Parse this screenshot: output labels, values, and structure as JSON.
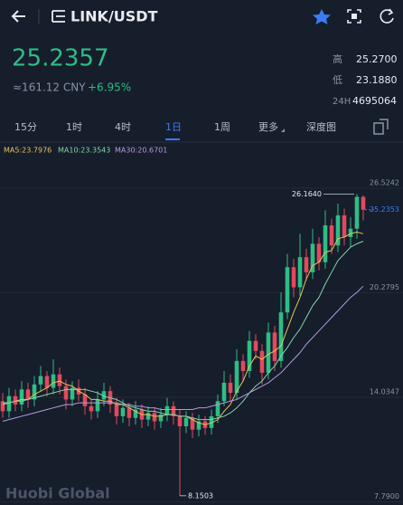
{
  "header": {
    "pair": "LINK/USDT"
  },
  "price": {
    "last": "25.2357",
    "cny": "≈161.12 CNY",
    "change": "+6.95%",
    "high_label": "高",
    "high": "25.2700",
    "low_label": "低",
    "low": "23.1880",
    "vol_label": "24H",
    "vol": "4695064"
  },
  "tabs": [
    "15分",
    "1时",
    "4时",
    "1日",
    "1周",
    "更多",
    "深度图"
  ],
  "watermark": "Huobi Global",
  "chart_data": {
    "type": "candlestick",
    "legend": [
      "MA5:23.7976",
      "MA10:23.3543",
      "MA30:20.6701"
    ],
    "up_color": "#2ebd85",
    "down_color": "#e04a5f",
    "open": [
      13.8,
      13.2,
      14.1,
      13.6,
      14.5,
      13.9,
      14.8,
      15.3,
      14.6,
      15.4,
      14.7,
      13.9,
      14.6,
      14.2,
      13.5,
      13.2,
      13.9,
      14.4,
      13.6,
      12.9,
      13.4,
      12.8,
      13.3,
      12.7,
      13.1,
      12.6,
      13.0,
      13.5,
      12.9,
      12.3,
      12.8,
      12.1,
      12.6,
      12.2,
      12.9,
      13.8,
      14.9,
      14.3,
      16.2,
      15.6,
      17.4,
      16.8,
      15.5,
      17.9,
      16.2,
      19.1,
      21.8,
      20.6,
      22.4,
      21.5,
      23.2,
      22.1,
      24.3,
      23.1,
      24.9,
      23.6,
      24.1,
      26.0
    ],
    "high": [
      14.3,
      14.6,
      14.5,
      15.0,
      14.9,
      15.3,
      15.9,
      15.6,
      16.3,
      15.8,
      15.1,
      15.0,
      15.1,
      14.6,
      13.9,
      14.4,
      14.9,
      14.7,
      14.0,
      13.9,
      13.7,
      13.8,
      13.6,
      13.5,
      13.4,
      13.4,
      14.0,
      13.8,
      13.3,
      13.2,
      13.1,
      13.0,
      12.9,
      13.3,
      14.2,
      15.6,
      15.4,
      16.9,
      16.6,
      18.0,
      17.8,
      17.2,
      18.5,
      18.3,
      20.3,
      22.6,
      22.3,
      23.8,
      22.9,
      24.1,
      23.6,
      25.2,
      24.7,
      25.6,
      25.3,
      24.8,
      26.164,
      26.1
    ],
    "low": [
      12.8,
      12.8,
      13.2,
      13.2,
      13.4,
      13.5,
      14.4,
      14.1,
      14.2,
      14.2,
      13.3,
      13.5,
      13.8,
      13.0,
      12.7,
      12.8,
      13.5,
      13.1,
      12.4,
      12.5,
      12.3,
      12.4,
      12.2,
      12.3,
      12.1,
      12.2,
      12.6,
      12.4,
      8.1503,
      11.9,
      11.6,
      11.7,
      11.8,
      11.8,
      12.5,
      13.5,
      13.8,
      13.9,
      15.0,
      15.2,
      16.3,
      14.8,
      15.1,
      15.6,
      15.8,
      18.7,
      20.0,
      20.1,
      21.0,
      21.1,
      21.6,
      21.7,
      22.6,
      22.7,
      23.1,
      23.0,
      23.5,
      24.6
    ],
    "close": [
      13.2,
      14.1,
      13.6,
      14.5,
      13.9,
      14.8,
      15.3,
      14.6,
      15.4,
      14.7,
      13.9,
      14.6,
      14.2,
      13.5,
      13.2,
      13.9,
      14.4,
      13.6,
      12.9,
      13.4,
      12.8,
      13.3,
      12.7,
      13.1,
      12.6,
      13.0,
      13.5,
      12.9,
      12.3,
      12.8,
      12.1,
      12.6,
      12.2,
      12.9,
      13.8,
      14.9,
      14.3,
      16.2,
      15.6,
      17.4,
      16.8,
      15.5,
      17.9,
      16.2,
      19.1,
      21.8,
      20.6,
      22.4,
      21.5,
      23.2,
      22.1,
      24.3,
      23.1,
      24.9,
      23.6,
      24.1,
      26.0,
      25.2353
    ],
    "series": [
      {
        "color": "#e6c35c",
        "values": [
          13.6,
          13.7,
          13.8,
          13.9,
          13.9,
          14.2,
          14.4,
          14.6,
          14.9,
          15.0,
          14.8,
          14.7,
          14.4,
          14.2,
          13.9,
          13.9,
          13.8,
          13.8,
          13.6,
          13.6,
          13.4,
          13.2,
          13.0,
          13.0,
          12.9,
          12.9,
          13.0,
          13.0,
          12.9,
          12.9,
          12.7,
          12.5,
          12.4,
          12.5,
          12.7,
          13.2,
          13.6,
          14.4,
          15.0,
          15.9,
          16.5,
          16.3,
          16.6,
          16.8,
          17.1,
          18.1,
          19.1,
          20.0,
          21.1,
          21.9,
          22.1,
          22.7,
          22.8,
          23.5,
          23.6,
          23.8,
          23.9,
          23.7976
        ]
      },
      {
        "color": "#7fd6a6",
        "values": [
          13.7,
          13.7,
          13.8,
          13.8,
          13.9,
          14.0,
          14.1,
          14.2,
          14.3,
          14.4,
          14.5,
          14.5,
          14.5,
          14.5,
          14.4,
          14.3,
          14.1,
          14.0,
          13.9,
          13.7,
          13.5,
          13.4,
          13.3,
          13.2,
          13.2,
          13.1,
          13.0,
          13.0,
          12.9,
          12.9,
          12.8,
          12.7,
          12.7,
          12.7,
          12.8,
          12.9,
          13.1,
          13.4,
          13.8,
          14.3,
          14.7,
          15.0,
          15.5,
          15.9,
          16.5,
          17.0,
          17.6,
          18.1,
          18.8,
          19.5,
          20.0,
          20.8,
          21.5,
          22.2,
          22.6,
          23.0,
          23.2,
          23.3543
        ]
      },
      {
        "color": "#b49ade",
        "values": [
          12.6,
          12.7,
          12.8,
          12.9,
          13.0,
          13.1,
          13.2,
          13.3,
          13.4,
          13.5,
          13.6,
          13.6,
          13.7,
          13.7,
          13.7,
          13.7,
          13.7,
          13.7,
          13.7,
          13.6,
          13.6,
          13.5,
          13.5,
          13.4,
          13.4,
          13.3,
          13.3,
          13.3,
          13.3,
          13.3,
          13.3,
          13.4,
          13.4,
          13.5,
          13.6,
          13.7,
          13.8,
          13.9,
          14.1,
          14.3,
          14.5,
          14.7,
          14.9,
          15.2,
          15.5,
          15.9,
          16.3,
          16.7,
          17.2,
          17.6,
          18.0,
          18.4,
          18.8,
          19.2,
          19.6,
          20.0,
          20.3,
          20.6701
        ]
      }
    ],
    "ylim": [
      7.6,
      28.3
    ],
    "yticks": [
      26.5242,
      20.2795,
      14.0347,
      {
        "value": 7.79,
        "label": "7.7900"
      }
    ],
    "grid": true,
    "annotations": {
      "max": {
        "value": 26.164,
        "label": "26.1640"
      },
      "min": {
        "value": 8.1503,
        "label": "8.1503"
      },
      "last": {
        "value": 25.2353,
        "label": "25.2353"
      }
    }
  }
}
